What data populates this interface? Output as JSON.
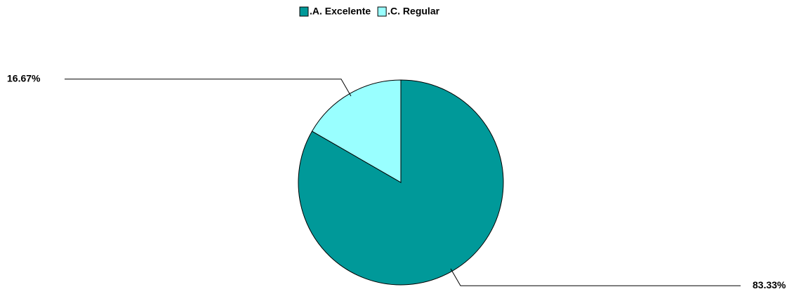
{
  "chart_data": {
    "type": "pie",
    "categories": [
      ".A. Excelente",
      ".C. Regular"
    ],
    "values": [
      83.33,
      16.67
    ],
    "value_labels": [
      "83.33%",
      "16.67%"
    ],
    "colors": [
      "#009999",
      "#99ffff"
    ],
    "legend": "top"
  }
}
